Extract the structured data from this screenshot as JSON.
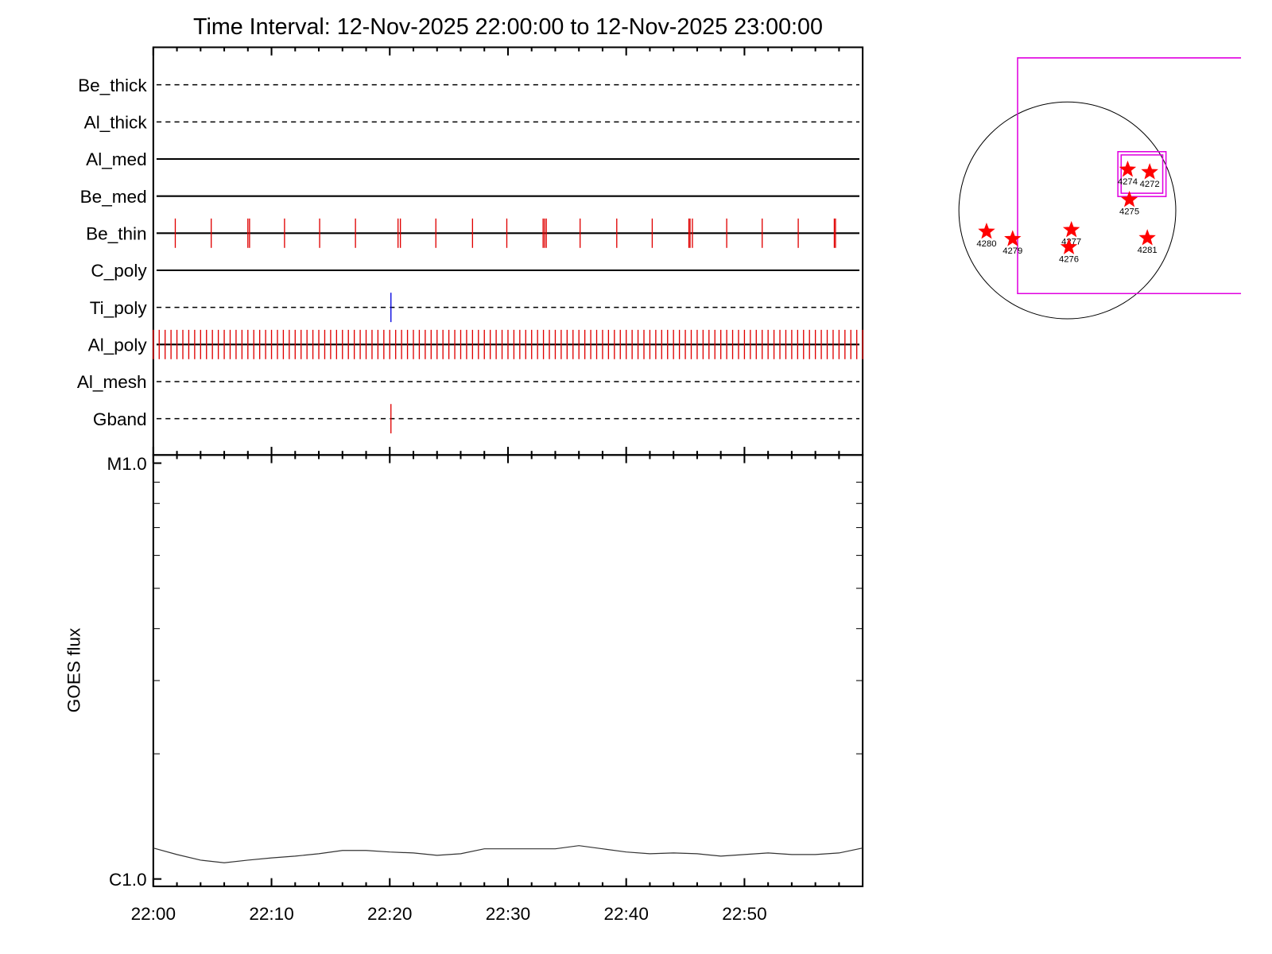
{
  "chart_data": [
    {
      "type": "timeline",
      "title": "Time Interval: 12-Nov-2025 22:00:00 to 12-Nov-2025 23:00:00",
      "xlim": [
        0,
        60
      ],
      "rows": [
        {
          "name": "Be_thick",
          "style": "dashed",
          "color": "#e00000",
          "events": []
        },
        {
          "name": "Al_thick",
          "style": "dashed",
          "color": "#e00000",
          "events": []
        },
        {
          "name": "Al_med",
          "style": "solid",
          "color": "#e00000",
          "events": []
        },
        {
          "name": "Be_med",
          "style": "solid",
          "color": "#e00000",
          "events": []
        },
        {
          "name": "Be_thin",
          "style": "solid",
          "color": "#e00000",
          "events": [
            1.86,
            4.9,
            8.0,
            8.14,
            11.1,
            14.07,
            17.1,
            20.7,
            20.9,
            23.9,
            27.0,
            29.9,
            32.97,
            33.1,
            33.24,
            36.1,
            39.2,
            42.2,
            45.3,
            45.4,
            45.6,
            48.5,
            51.5,
            54.55,
            57.6,
            57.7
          ]
        },
        {
          "name": "C_poly",
          "style": "solid",
          "color": "#e00000",
          "events": []
        },
        {
          "name": "Ti_poly",
          "style": "dashed",
          "color": "#0000e0",
          "events": [
            20.1
          ]
        },
        {
          "name": "Al_poly",
          "style": "solid",
          "color": "#e00000",
          "events": [
            0,
            0.5,
            1,
            1.5,
            2,
            2.5,
            3,
            3.5,
            4,
            4.5,
            5,
            5.5,
            6,
            6.5,
            7,
            7.5,
            8,
            8.5,
            9,
            9.5,
            10,
            10.5,
            11,
            11.5,
            12,
            12.5,
            13,
            13.5,
            14,
            14.5,
            15,
            15.5,
            16,
            16.5,
            17,
            17.5,
            18,
            18.5,
            19,
            19.5,
            20,
            20.5,
            21,
            21.5,
            22,
            22.5,
            23,
            23.5,
            24,
            24.5,
            25,
            25.5,
            26,
            26.5,
            27,
            27.5,
            28,
            28.5,
            29,
            29.5,
            30,
            30.5,
            31,
            31.5,
            32,
            32.5,
            33,
            33.5,
            34,
            34.5,
            35,
            35.5,
            36,
            36.5,
            37,
            37.5,
            38,
            38.5,
            39,
            39.5,
            40,
            40.5,
            41,
            41.5,
            42,
            42.5,
            43,
            43.5,
            44,
            44.5,
            45,
            45.5,
            46,
            46.5,
            47,
            47.5,
            48,
            48.5,
            49,
            49.5,
            50,
            50.5,
            51,
            51.5,
            52,
            52.5,
            53,
            53.5,
            54,
            54.5,
            55,
            55.5,
            56,
            56.5,
            57,
            57.5,
            58,
            58.5,
            59,
            59.5,
            60
          ]
        },
        {
          "name": "Al_mesh",
          "style": "dashed",
          "color": "#e00000",
          "events": []
        },
        {
          "name": "Gband",
          "style": "dashed",
          "color": "#e00000",
          "events": [
            20.1
          ]
        }
      ]
    },
    {
      "type": "line",
      "ylabel": "GOES flux",
      "x": [
        0,
        2,
        4,
        6,
        8,
        10,
        12,
        14,
        16,
        18,
        20,
        22,
        24,
        26,
        28,
        30,
        32,
        34,
        36,
        38,
        40,
        42,
        44,
        46,
        48,
        50,
        52,
        54,
        56,
        58,
        60
      ],
      "series": [
        {
          "color": "#333333",
          "values": [
            1.187e-06,
            1.145e-06,
            1.11e-06,
            1.094e-06,
            1.11e-06,
            1.124e-06,
            1.135e-06,
            1.15e-06,
            1.171e-06,
            1.171e-06,
            1.161e-06,
            1.155e-06,
            1.14e-06,
            1.15e-06,
            1.182e-06,
            1.182e-06,
            1.182e-06,
            1.182e-06,
            1.203e-06,
            1.182e-06,
            1.161e-06,
            1.15e-06,
            1.155e-06,
            1.15e-06,
            1.135e-06,
            1.145e-06,
            1.155e-06,
            1.145e-06,
            1.145e-06,
            1.155e-06,
            1.187e-06
          ]
        }
      ],
      "xlim": [
        0,
        60
      ],
      "xticks": [
        {
          "value": 0,
          "label": "22:00"
        },
        {
          "value": 10,
          "label": "22:10"
        },
        {
          "value": 20,
          "label": "22:20"
        },
        {
          "value": 30,
          "label": "22:30"
        },
        {
          "value": 40,
          "label": "22:40"
        },
        {
          "value": 50,
          "label": "22:50"
        }
      ],
      "xminorticks": [
        2,
        4,
        6,
        8,
        12,
        14,
        16,
        18,
        22,
        24,
        26,
        28,
        32,
        34,
        36,
        38,
        42,
        44,
        46,
        48,
        52,
        54,
        56,
        58
      ],
      "ylim": [
        1e-06,
        1e-05
      ],
      "yticks": [
        {
          "value": 1e-05,
          "label": "M1.0"
        },
        {
          "value": 1e-06,
          "label": "C1.0"
        }
      ],
      "yminorticks": [
        2e-06,
        3e-06,
        4e-06,
        5e-06,
        6e-06,
        7e-06,
        8e-06,
        9e-06
      ],
      "log_scale": true
    },
    {
      "type": "map",
      "color": "#ff0000",
      "labels": [
        "4274",
        "4272",
        "4275",
        "4280",
        "4279",
        "4277",
        "4276",
        "4281"
      ],
      "x": [
        534,
        729,
        549,
        -715,
        -484,
        36,
        14,
        708
      ],
      "y": [
        361,
        339,
        94,
        -188,
        -253,
        -173,
        -325,
        -245
      ]
    }
  ]
}
